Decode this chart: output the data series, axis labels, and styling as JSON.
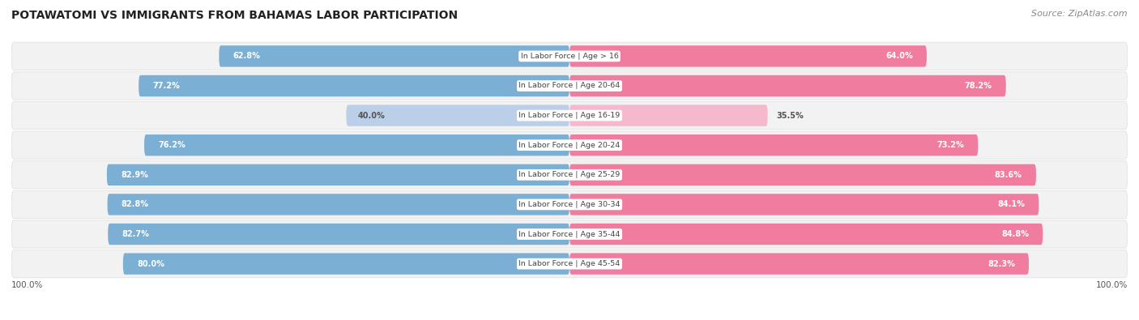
{
  "title": "POTAWATOMI VS IMMIGRANTS FROM BAHAMAS LABOR PARTICIPATION",
  "source": "Source: ZipAtlas.com",
  "categories": [
    "In Labor Force | Age > 16",
    "In Labor Force | Age 20-64",
    "In Labor Force | Age 16-19",
    "In Labor Force | Age 20-24",
    "In Labor Force | Age 25-29",
    "In Labor Force | Age 30-34",
    "In Labor Force | Age 35-44",
    "In Labor Force | Age 45-54"
  ],
  "potawatomi": [
    62.8,
    77.2,
    40.0,
    76.2,
    82.9,
    82.8,
    82.7,
    80.0
  ],
  "bahamas": [
    64.0,
    78.2,
    35.5,
    73.2,
    83.6,
    84.1,
    84.8,
    82.3
  ],
  "blue_color": "#7BAFD4",
  "blue_light_color": "#BBCFE8",
  "pink_color": "#F07CA0",
  "pink_light_color": "#F5B8CC",
  "row_bg": "#F2F2F2",
  "figsize": [
    14.06,
    3.95
  ],
  "dpi": 100
}
